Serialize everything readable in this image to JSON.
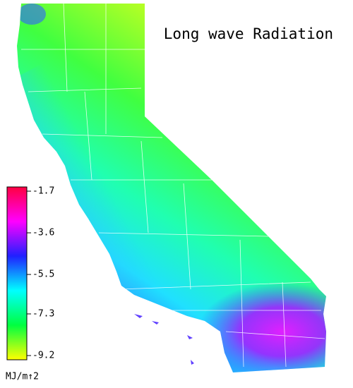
{
  "title": "Long wave Radiation",
  "legend": {
    "ticks": [
      -1.7,
      -3.6,
      -5.5,
      -7.3,
      -9.2
    ],
    "unit": "MJ/m↑2",
    "colors": [
      "#ff0040",
      "#ff00ff",
      "#2020ff",
      "#00ffff",
      "#00ff40",
      "#ffff00"
    ]
  }
}
